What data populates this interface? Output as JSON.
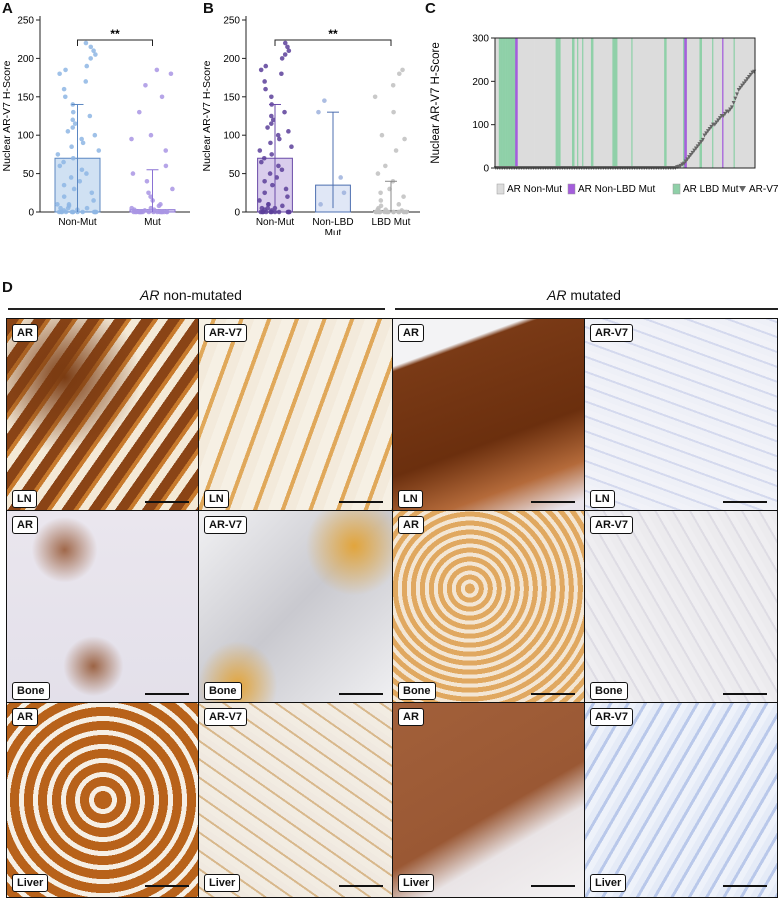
{
  "panels": {
    "A": {
      "letter": "A",
      "ylabel": "Nuclear AR-V7 H-Score",
      "yticks": [
        "0",
        "50",
        "100",
        "150",
        "200",
        "250"
      ],
      "sig": "**",
      "categories": [
        "Non-Mut",
        "Mut"
      ]
    },
    "B": {
      "letter": "B",
      "ylabel": "Nuclear AR-V7 H-Score",
      "yticks": [
        "0",
        "50",
        "100",
        "150",
        "200",
        "250"
      ],
      "sig": "**",
      "categories": [
        "Non-Mut",
        "Non-LBD\nMut",
        "LBD Mut"
      ]
    },
    "C": {
      "letter": "C",
      "ylabel": "Nuclear AR-V7 H-Score",
      "yticks": [
        "0",
        "100",
        "200",
        "300"
      ],
      "legend": [
        "AR Non-Mut",
        "AR Non-LBD Mut",
        "AR LBD Mut",
        "AR-V7"
      ]
    },
    "D": {
      "letter": "D",
      "header_left_gene": "AR",
      "header_left_rest": " non-mutated",
      "header_right_gene": "AR",
      "header_right_rest": " mutated"
    }
  },
  "colors": {
    "non_mut": "#a9c8ea",
    "non_mut_dot": "#8eb6e4",
    "mut": "#b7a7e6",
    "mut_dot": "#a995e4",
    "nonlbd": "#b9a4dd",
    "nonlbd_dot": "#5c3f9a",
    "lbd_dot": "#bfbfbf",
    "c_nonmut_bar": "#dcdcdc",
    "c_nonlbd_bar": "#a45ddc",
    "c_lbd_bar": "#8fd0a8",
    "c_marker": "#666666"
  },
  "chart_data": [
    {
      "type": "bar",
      "panel": "A",
      "categories": [
        "Non-Mut",
        "Mut"
      ],
      "values": [
        70,
        3
      ],
      "errors": [
        [
          0,
          140
        ],
        [
          0,
          55
        ]
      ],
      "ylim": [
        0,
        250
      ],
      "ylabel": "Nuclear AR-V7 H-Score",
      "significance": "**",
      "points": [
        [
          0,
          0,
          0,
          0,
          0,
          0,
          0,
          0,
          0,
          0,
          0,
          0,
          0,
          2,
          3,
          5,
          5,
          5,
          8,
          10,
          10,
          15,
          20,
          25,
          30,
          35,
          40,
          45,
          50,
          55,
          60,
          65,
          70,
          75,
          80,
          85,
          90,
          95,
          100,
          105,
          110,
          115,
          120,
          125,
          130,
          140,
          150,
          160,
          170,
          180,
          185,
          190,
          200,
          205,
          210,
          215,
          220
        ],
        [
          0,
          0,
          0,
          0,
          0,
          0,
          0,
          0,
          0,
          0,
          0,
          0,
          0,
          0,
          0,
          0,
          0,
          0,
          0,
          2,
          3,
          3,
          5,
          5,
          8,
          10,
          15,
          20,
          25,
          30,
          40,
          50,
          60,
          80,
          95,
          100,
          130,
          150,
          165,
          180,
          185
        ]
      ]
    },
    {
      "type": "bar",
      "panel": "B",
      "categories": [
        "Non-Mut",
        "Non-LBD Mut",
        "LBD Mut"
      ],
      "values": [
        70,
        35,
        2
      ],
      "errors": [
        [
          0,
          140
        ],
        [
          5,
          130
        ],
        [
          0,
          40
        ]
      ],
      "ylim": [
        0,
        250
      ],
      "ylabel": "Nuclear AR-V7 H-Score",
      "significance": "**",
      "points": [
        [
          0,
          0,
          0,
          0,
          0,
          0,
          0,
          0,
          0,
          0,
          0,
          0,
          2,
          3,
          5,
          5,
          5,
          8,
          10,
          10,
          15,
          20,
          25,
          30,
          35,
          40,
          45,
          50,
          55,
          60,
          65,
          70,
          75,
          80,
          85,
          90,
          95,
          100,
          105,
          110,
          115,
          120,
          125,
          130,
          140,
          150,
          160,
          170,
          180,
          185,
          190,
          200,
          205,
          210,
          215,
          220
        ],
        [
          10,
          25,
          45,
          130,
          145
        ],
        [
          0,
          0,
          0,
          0,
          0,
          0,
          0,
          0,
          0,
          0,
          0,
          0,
          0,
          0,
          0,
          0,
          0,
          2,
          3,
          3,
          5,
          8,
          10,
          15,
          20,
          25,
          30,
          40,
          50,
          60,
          80,
          95,
          100,
          130,
          150,
          165,
          180,
          185
        ]
      ]
    },
    {
      "type": "bar",
      "panel": "C",
      "ylim": [
        0,
        300
      ],
      "ylabel": "Nuclear AR-V7 H-Score",
      "legend": [
        "AR Non-Mut",
        "AR Non-LBD Mut",
        "AR LBD Mut",
        "AR-V7"
      ],
      "mutation_class": "00011111111111112200000000000000000000000000000011110000000001100100010000001100000000000000011110000000000010000000000000000000000000110000000000000122000000000011000000001000000020000000010000000000000000",
      "av7_scores": [
        0,
        0,
        0,
        0,
        0,
        0,
        0,
        0,
        0,
        0,
        0,
        0,
        0,
        0,
        0,
        0,
        0,
        0,
        0,
        0,
        0,
        0,
        0,
        0,
        0,
        0,
        0,
        0,
        0,
        0,
        0,
        0,
        0,
        0,
        0,
        0,
        0,
        0,
        0,
        0,
        0,
        0,
        0,
        0,
        0,
        0,
        0,
        0,
        0,
        0,
        0,
        0,
        0,
        0,
        0,
        0,
        0,
        0,
        0,
        0,
        0,
        0,
        0,
        0,
        0,
        0,
        0,
        0,
        0,
        0,
        0,
        0,
        0,
        0,
        0,
        0,
        0,
        0,
        0,
        0,
        0,
        0,
        0,
        0,
        0,
        0,
        0,
        0,
        0,
        0,
        0,
        0,
        0,
        0,
        0,
        0,
        0,
        0,
        0,
        0,
        0,
        0,
        0,
        0,
        0,
        0,
        2,
        3,
        5,
        8,
        10,
        15,
        20,
        25,
        30,
        35,
        40,
        45,
        50,
        55,
        60,
        65,
        75,
        80,
        85,
        90,
        95,
        100,
        100,
        105,
        110,
        115,
        120,
        120,
        125,
        130,
        130,
        135,
        140,
        150,
        160,
        170,
        180,
        185,
        190,
        195,
        200,
        205,
        210,
        215,
        220,
        222
      ]
    }
  ]
}
